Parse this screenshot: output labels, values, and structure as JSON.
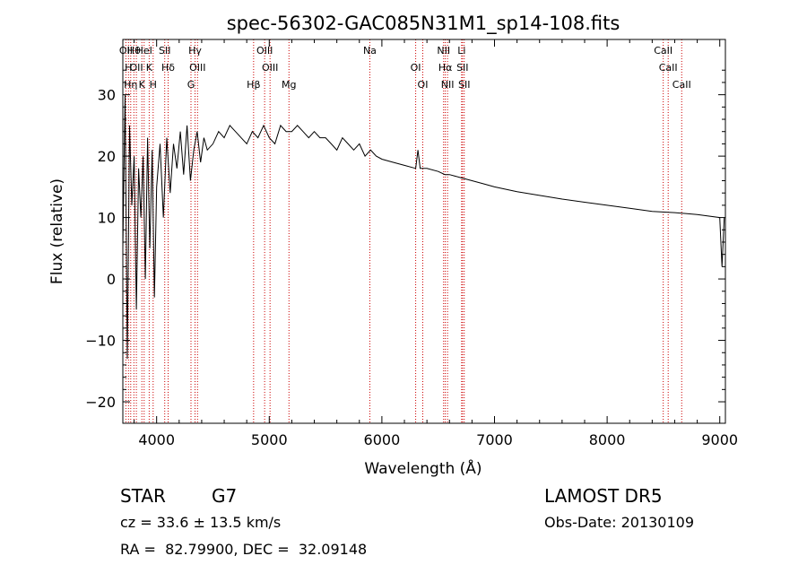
{
  "chart_data": {
    "type": "line",
    "title": "spec-56302-GAC085N31M1_sp14-108.fits",
    "xlabel": "Wavelength (Å)",
    "ylabel": "Flux (relative)",
    "xlim": [
      3700,
      9050
    ],
    "ylim": [
      -23.5,
      39
    ],
    "x_ticks": [
      4000,
      5000,
      6000,
      7000,
      8000,
      9000
    ],
    "y_ticks": [
      -20,
      -10,
      0,
      10,
      20,
      30
    ],
    "grid": false,
    "line_color": "#000000",
    "marker_color": "#cc0000",
    "spectrum": {
      "x": [
        3700,
        3720,
        3740,
        3760,
        3780,
        3800,
        3820,
        3840,
        3860,
        3880,
        3900,
        3920,
        3940,
        3960,
        3980,
        4000,
        4030,
        4060,
        4090,
        4120,
        4150,
        4180,
        4210,
        4240,
        4270,
        4300,
        4330,
        4360,
        4390,
        4420,
        4450,
        4500,
        4550,
        4600,
        4650,
        4700,
        4750,
        4800,
        4850,
        4900,
        4950,
        5000,
        5050,
        5100,
        5150,
        5200,
        5250,
        5300,
        5350,
        5400,
        5450,
        5500,
        5550,
        5600,
        5650,
        5700,
        5750,
        5800,
        5850,
        5900,
        5950,
        6000,
        6100,
        6200,
        6300,
        6320,
        6340,
        6400,
        6500,
        6560,
        6600,
        6700,
        6800,
        6900,
        7000,
        7200,
        7400,
        7600,
        7800,
        8000,
        8200,
        8400,
        8600,
        8800,
        9000,
        9020,
        9040
      ],
      "y": [
        5,
        30,
        -13,
        25,
        12,
        20,
        -5,
        18,
        10,
        20,
        0,
        23,
        5,
        21,
        -3,
        15,
        22,
        10,
        23,
        14,
        22,
        18,
        24,
        17,
        25,
        16,
        21,
        24,
        19,
        23,
        21,
        22,
        24,
        23,
        25,
        24,
        23,
        22,
        24,
        23,
        25,
        23,
        22,
        25,
        24,
        24,
        25,
        24,
        23,
        24,
        23,
        23,
        22,
        21,
        23,
        22,
        21,
        22,
        20,
        21,
        20,
        19.5,
        19,
        18.5,
        18,
        21,
        18,
        18,
        17.5,
        17,
        17,
        16.5,
        16,
        15.5,
        15,
        14.2,
        13.6,
        13,
        12.5,
        12,
        11.5,
        11,
        10.8,
        10.5,
        10,
        2,
        10
      ]
    },
    "line_markers": [
      {
        "wavelength": 3727,
        "label": "OII"
      },
      {
        "wavelength": 3750,
        "label": "H"
      },
      {
        "wavelength": 3770,
        "label": "Hη"
      },
      {
        "wavelength": 3798,
        "label": "Hθ"
      },
      {
        "wavelength": 3820,
        "label": "OII"
      },
      {
        "wavelength": 3869,
        "label": "K"
      },
      {
        "wavelength": 3889,
        "label": "HeI"
      },
      {
        "wavelength": 3934,
        "label": "K"
      },
      {
        "wavelength": 3969,
        "label": "H"
      },
      {
        "wavelength": 4072,
        "label": "SII"
      },
      {
        "wavelength": 4102,
        "label": "Hδ"
      },
      {
        "wavelength": 4305,
        "label": "G"
      },
      {
        "wavelength": 4341,
        "label": "Hγ"
      },
      {
        "wavelength": 4363,
        "label": "OIII"
      },
      {
        "wavelength": 4861,
        "label": "Hβ"
      },
      {
        "wavelength": 4959,
        "label": "OIII"
      },
      {
        "wavelength": 5007,
        "label": "OIII"
      },
      {
        "wavelength": 5175,
        "label": "Mg"
      },
      {
        "wavelength": 5893,
        "label": "Na"
      },
      {
        "wavelength": 6300,
        "label": "OI"
      },
      {
        "wavelength": 6363,
        "label": "OI"
      },
      {
        "wavelength": 6548,
        "label": "NII"
      },
      {
        "wavelength": 6563,
        "label": "Hα"
      },
      {
        "wavelength": 6583,
        "label": "NII"
      },
      {
        "wavelength": 6708,
        "label": "Li"
      },
      {
        "wavelength": 6716,
        "label": "SII"
      },
      {
        "wavelength": 6731,
        "label": "SII"
      },
      {
        "wavelength": 8498,
        "label": "CaII"
      },
      {
        "wavelength": 8542,
        "label": "CaII"
      },
      {
        "wavelength": 8662,
        "label": "CaII"
      }
    ]
  },
  "info": {
    "class_label": "STAR",
    "subclass": "G7",
    "cz": "cz = 33.6 ± 13.5 km/s",
    "coords": "RA =  82.79900, DEC =  32.09148",
    "survey": "LAMOST DR5",
    "obs_date": "Obs-Date: 20130109"
  }
}
